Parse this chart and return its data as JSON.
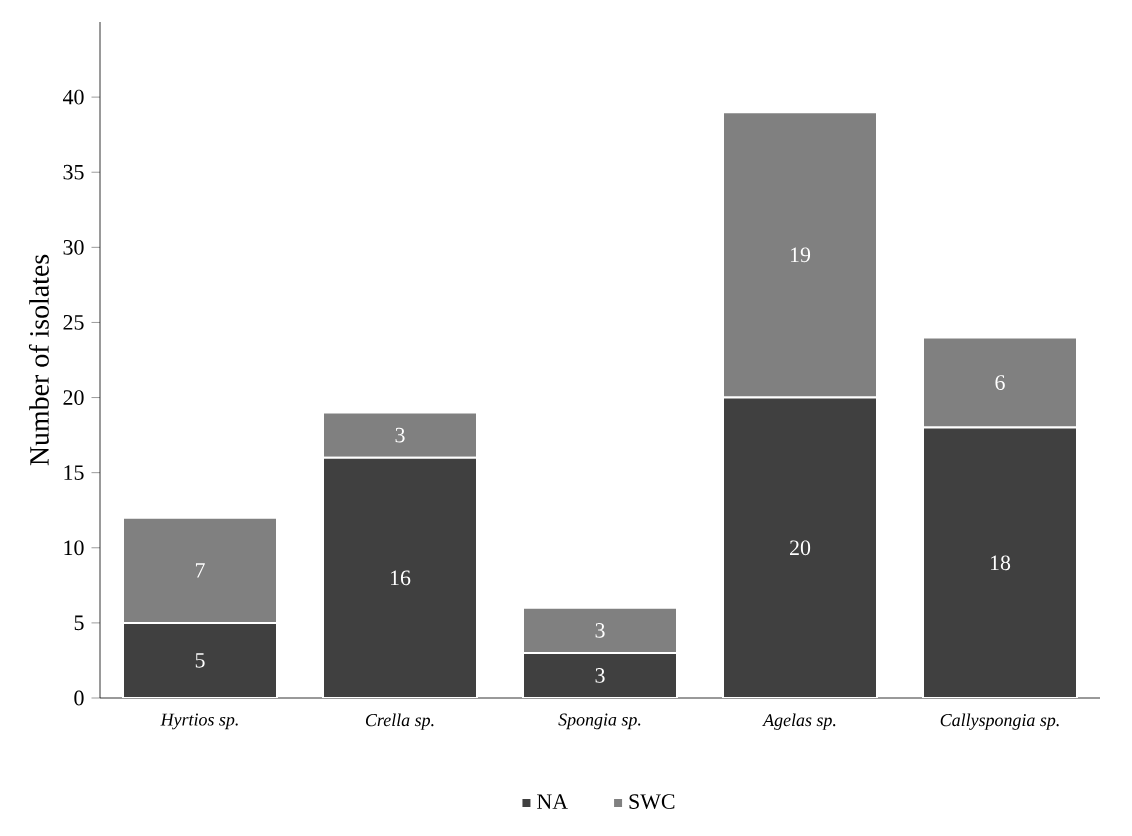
{
  "chart_data": {
    "type": "bar",
    "stacked": true,
    "ylabel": "Number of isolates",
    "categories": [
      "Hyrtios sp.",
      "Crella sp.",
      "Spongia sp.",
      "Agelas sp.",
      "Callyspongia sp."
    ],
    "series": [
      {
        "name": "NA",
        "color": "#404040",
        "values": [
          5,
          16,
          3,
          20,
          18
        ]
      },
      {
        "name": "SWC",
        "color": "#808080",
        "values": [
          7,
          3,
          3,
          19,
          6
        ]
      }
    ],
    "ylim": [
      0,
      45
    ],
    "yticks": [
      0,
      5,
      10,
      15,
      20,
      25,
      30,
      35,
      40
    ],
    "data_labels": true,
    "legend": "bottom",
    "grid": false
  }
}
